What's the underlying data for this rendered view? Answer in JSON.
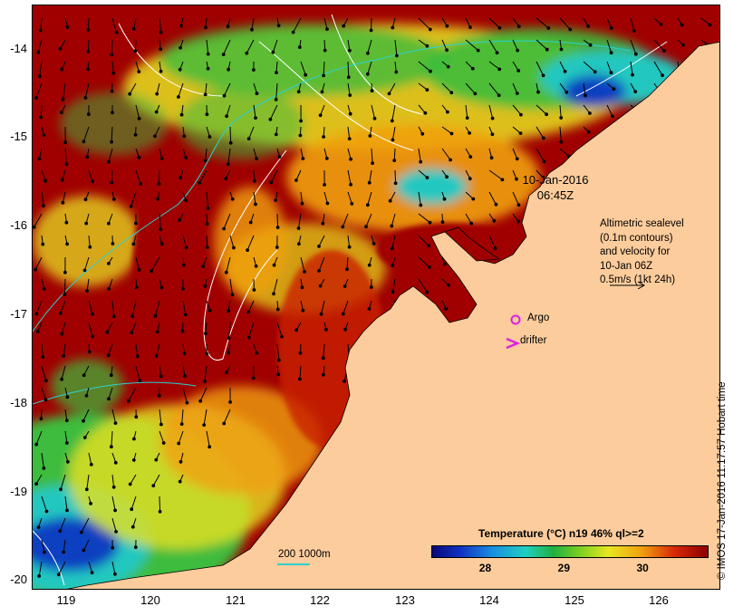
{
  "map": {
    "lat_labels": [
      "-14",
      "-15",
      "-16",
      "-17",
      "-18",
      "-19",
      "-20"
    ],
    "lon_labels": [
      "119",
      "120",
      "121",
      "122",
      "123",
      "124",
      "125",
      "126"
    ],
    "lat_range": [
      -20.1,
      -13.6
    ],
    "lon_range": [
      118.65,
      126.7
    ],
    "colors": {
      "land": "#fccc9c",
      "warm": "#a00000",
      "hot": "#c81e06",
      "mid": "#f0a010",
      "yellow": "#e8e020",
      "green": "#3cbc3c",
      "cool": "#20c8c0",
      "cold": "#1040c0",
      "contour": "#ffffff",
      "isobath": "#2ad2d0",
      "argo": "#e020e0"
    }
  },
  "annotation": {
    "date": "10-Jan-2016",
    "time": "06:45Z",
    "legend_lines": [
      "Altimetric sealevel",
      "(0.1m contours)",
      "and velocity for",
      "10-Jan 06Z",
      "0.5m/s (1kt 24h)"
    ]
  },
  "markers": {
    "argo_label": "Argo",
    "drifter_label": "drifter"
  },
  "colorbar": {
    "title": "Temperature (°C) n19 46% ql>=2",
    "ticks": [
      "28",
      "29",
      "30"
    ],
    "tick_values": [
      28,
      29,
      30
    ],
    "range": [
      27.3,
      30.8
    ]
  },
  "scale": {
    "label": "200  1000m"
  },
  "credit": "© IMOS 17-Jan-2016 11:17:57 Hobart time"
}
